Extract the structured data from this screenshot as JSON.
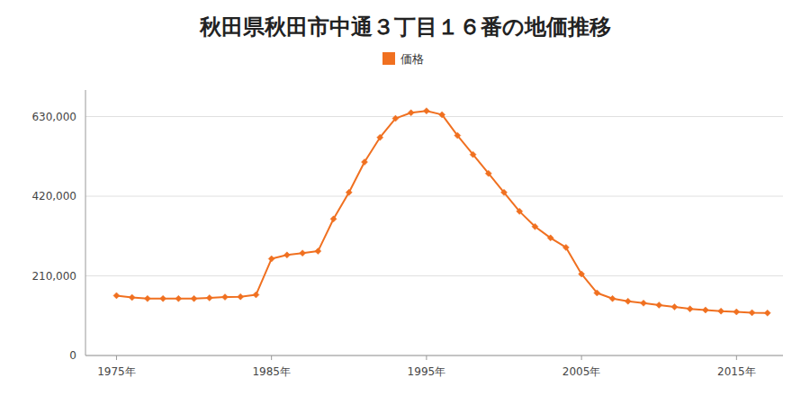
{
  "chart_data": {
    "type": "line",
    "title": "秋田県秋田市中通３丁目１６番の地価推移",
    "x": [
      1975,
      1976,
      1977,
      1978,
      1979,
      1980,
      1981,
      1982,
      1983,
      1984,
      1985,
      1986,
      1987,
      1988,
      1989,
      1990,
      1991,
      1992,
      1993,
      1994,
      1995,
      1996,
      1997,
      1998,
      1999,
      2000,
      2001,
      2002,
      2003,
      2004,
      2005,
      2006,
      2007,
      2008,
      2009,
      2010,
      2011,
      2012,
      2013,
      2014,
      2015,
      2016,
      2017
    ],
    "series": [
      {
        "name": "価格",
        "color": "#f07020",
        "marker": "diamond",
        "values": [
          158000,
          153000,
          150000,
          150000,
          150000,
          150000,
          152000,
          154000,
          155000,
          160000,
          255000,
          265000,
          270000,
          275000,
          360000,
          430000,
          510000,
          575000,
          625000,
          640000,
          645000,
          635000,
          580000,
          530000,
          480000,
          430000,
          380000,
          340000,
          310000,
          285000,
          215000,
          165000,
          150000,
          143000,
          138000,
          133000,
          128000,
          123000,
          120000,
          117000,
          115000,
          113000,
          112000
        ]
      }
    ],
    "xlim": [
      1973,
      2018
    ],
    "xticks": [
      {
        "value": 1975,
        "label": "1975年"
      },
      {
        "value": 1985,
        "label": "1985年"
      },
      {
        "value": 1995,
        "label": "1995年"
      },
      {
        "value": 2005,
        "label": "2005年"
      },
      {
        "value": 2015,
        "label": "2015年"
      }
    ],
    "ylim": [
      0,
      700000
    ],
    "yticks": [
      0,
      {
        "value": 210000,
        "label": "210,000"
      },
      {
        "value": 420000,
        "label": "420,000"
      },
      {
        "value": 630000,
        "label": "630,000"
      }
    ],
    "grid": true,
    "legend": "top"
  }
}
